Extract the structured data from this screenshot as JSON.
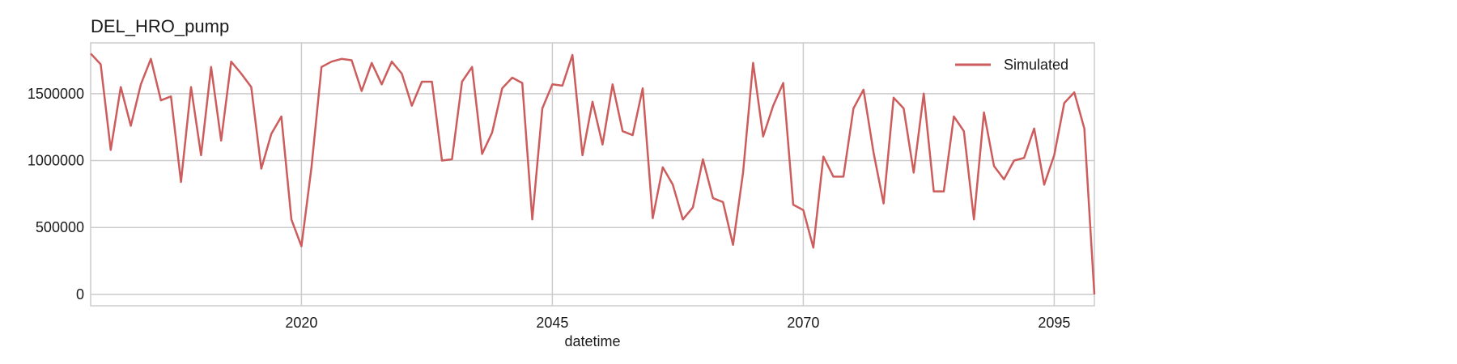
{
  "chart_data": {
    "type": "line",
    "title": "DEL_HRO_pump",
    "xlabel": "datetime",
    "ylabel": "",
    "xlim": [
      1999,
      2099
    ],
    "ylim": [
      -85000,
      1880000
    ],
    "grid": true,
    "legend_position": "top-right",
    "x_ticks": [
      {
        "value": 2020,
        "label": "2020"
      },
      {
        "value": 2045,
        "label": "2045"
      },
      {
        "value": 2070,
        "label": "2070"
      },
      {
        "value": 2095,
        "label": "2095"
      }
    ],
    "y_ticks": [
      {
        "value": 0,
        "label": "0"
      },
      {
        "value": 500000,
        "label": "500000"
      },
      {
        "value": 1000000,
        "label": "1000000"
      },
      {
        "value": 1500000,
        "label": "1500000"
      }
    ],
    "series": [
      {
        "name": "Simulated",
        "color": "#cd5c5c",
        "x": [
          1999,
          2000,
          2001,
          2002,
          2003,
          2004,
          2005,
          2006,
          2007,
          2008,
          2009,
          2010,
          2011,
          2012,
          2013,
          2014,
          2015,
          2016,
          2017,
          2018,
          2019,
          2020,
          2021,
          2022,
          2023,
          2024,
          2025,
          2026,
          2027,
          2028,
          2029,
          2030,
          2031,
          2032,
          2033,
          2034,
          2035,
          2036,
          2037,
          2038,
          2039,
          2040,
          2041,
          2042,
          2043,
          2044,
          2045,
          2046,
          2047,
          2048,
          2049,
          2050,
          2051,
          2052,
          2053,
          2054,
          2055,
          2056,
          2057,
          2058,
          2059,
          2060,
          2061,
          2062,
          2063,
          2064,
          2065,
          2066,
          2067,
          2068,
          2069,
          2070,
          2071,
          2072,
          2073,
          2074,
          2075,
          2076,
          2077,
          2078,
          2079,
          2080,
          2081,
          2082,
          2083,
          2084,
          2085,
          2086,
          2087,
          2088,
          2089,
          2090,
          2091,
          2092,
          2093,
          2094,
          2095,
          2096,
          2097,
          2098,
          2099
        ],
        "values": [
          1800000,
          1720000,
          1080000,
          1550000,
          1260000,
          1570000,
          1760000,
          1450000,
          1480000,
          840000,
          1550000,
          1040000,
          1700000,
          1150000,
          1740000,
          1650000,
          1550000,
          940000,
          1200000,
          1330000,
          560000,
          360000,
          950000,
          1700000,
          1740000,
          1760000,
          1750000,
          1520000,
          1730000,
          1570000,
          1740000,
          1650000,
          1410000,
          1590000,
          1590000,
          1000000,
          1010000,
          1590000,
          1700000,
          1050000,
          1210000,
          1540000,
          1620000,
          1580000,
          560000,
          1390000,
          1570000,
          1560000,
          1790000,
          1040000,
          1440000,
          1120000,
          1570000,
          1220000,
          1190000,
          1540000,
          570000,
          950000,
          820000,
          560000,
          650000,
          1010000,
          720000,
          690000,
          370000,
          910000,
          1730000,
          1180000,
          1410000,
          1580000,
          670000,
          630000,
          350000,
          1030000,
          880000,
          880000,
          1390000,
          1530000,
          1060000,
          680000,
          1470000,
          1390000,
          910000,
          1500000,
          770000,
          770000,
          1330000,
          1220000,
          560000,
          1360000,
          960000,
          860000,
          1000000,
          1020000,
          1240000,
          820000,
          1040000,
          1430000,
          1510000,
          1240000,
          0
        ]
      }
    ]
  }
}
